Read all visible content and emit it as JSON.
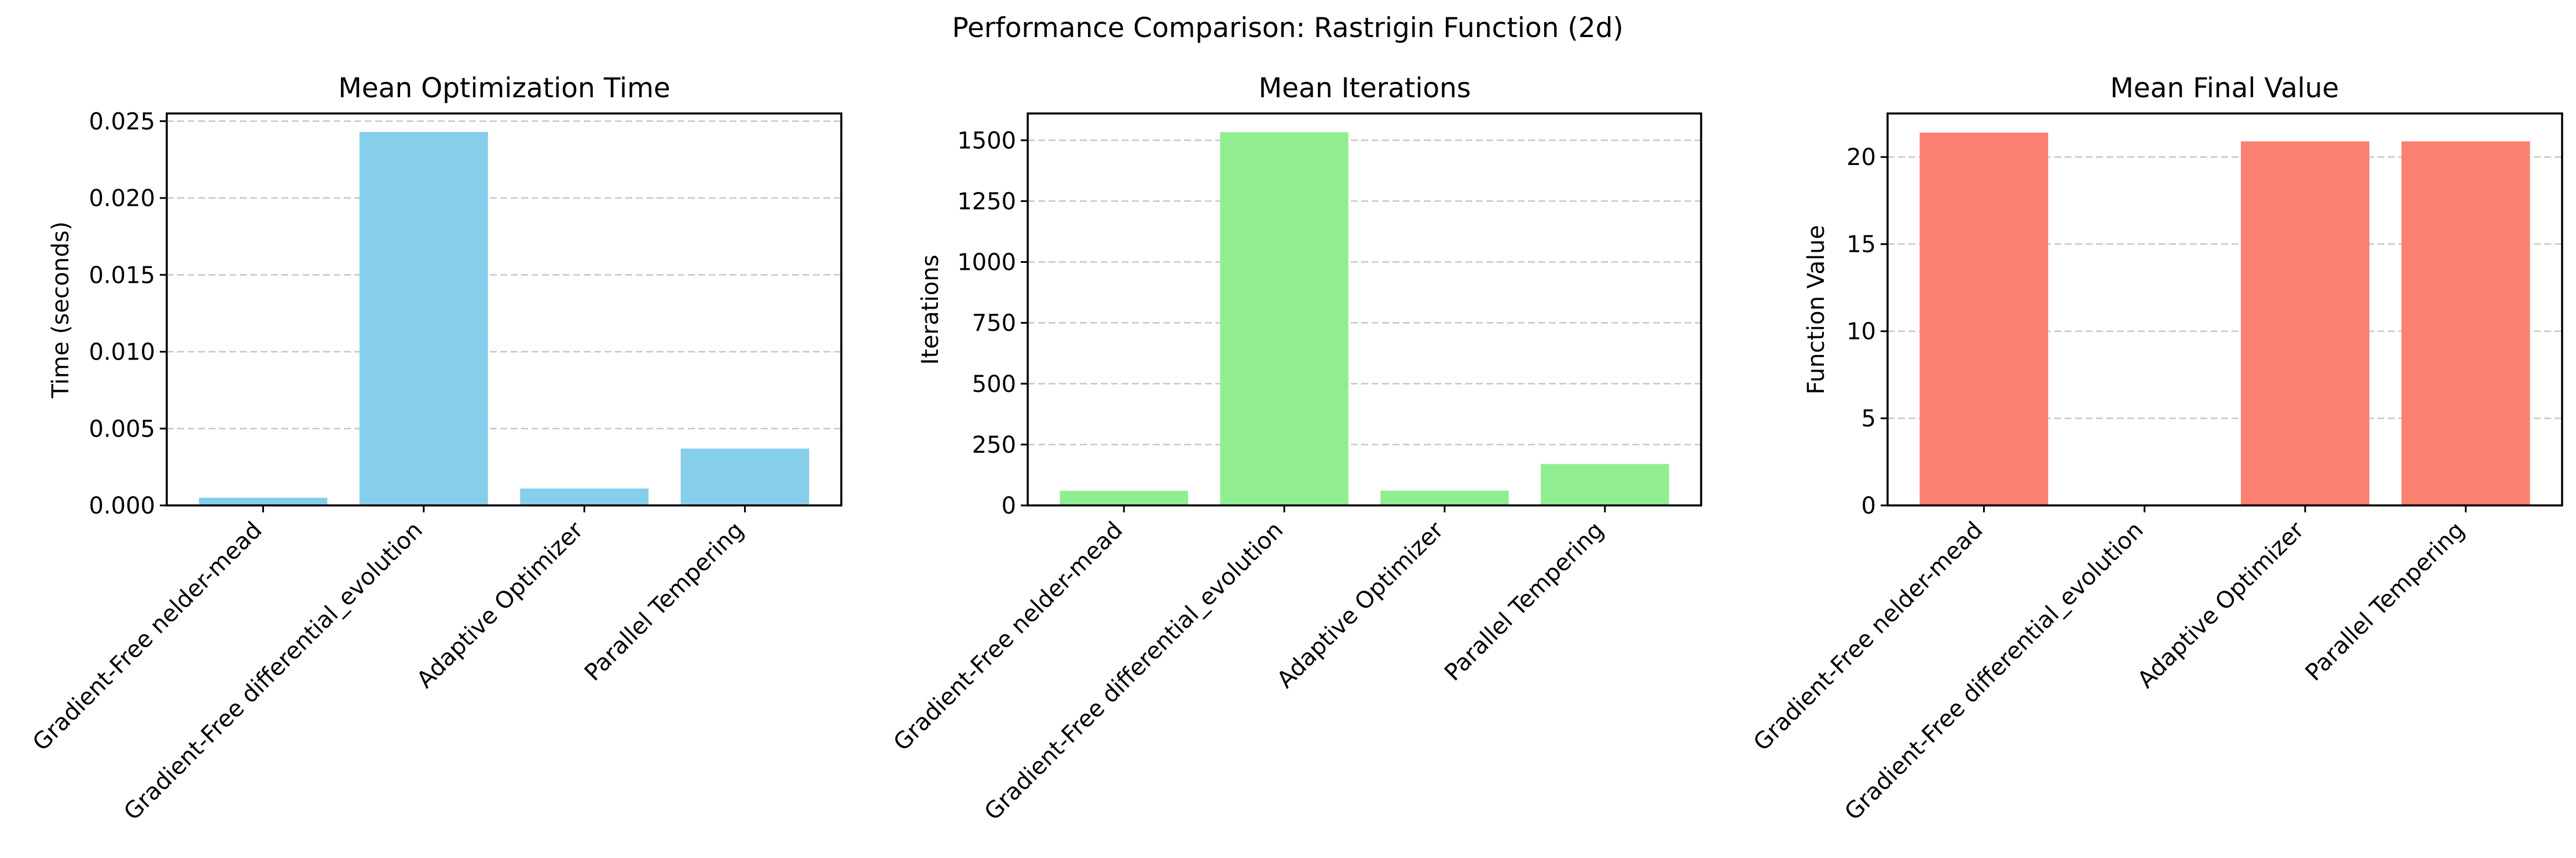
{
  "figure": {
    "suptitle": "Performance Comparison: Rastrigin Function (2d)"
  },
  "chart_data": [
    {
      "type": "bar",
      "title": "Mean Optimization Time",
      "xlabel": "",
      "ylabel": "Time (seconds)",
      "categories": [
        "Gradient-Free nelder-mead",
        "Gradient-Free differential_evolution",
        "Adaptive Optimizer",
        "Parallel Tempering"
      ],
      "values": [
        0.0005,
        0.0243,
        0.0011,
        0.0037
      ],
      "ylim": [
        0,
        0.0255
      ],
      "yticks": [
        0.0,
        0.005,
        0.01,
        0.015,
        0.02,
        0.025
      ],
      "ytick_labels": [
        "0.000",
        "0.005",
        "0.010",
        "0.015",
        "0.020",
        "0.025"
      ],
      "color": "#87CEEB",
      "grid": "y-dashed",
      "legend": "none"
    },
    {
      "type": "bar",
      "title": "Mean Iterations",
      "xlabel": "",
      "ylabel": "Iterations",
      "categories": [
        "Gradient-Free nelder-mead",
        "Gradient-Free differential_evolution",
        "Adaptive Optimizer",
        "Parallel Tempering"
      ],
      "values": [
        60,
        1533,
        61,
        170
      ],
      "ylim": [
        0,
        1610
      ],
      "yticks": [
        0,
        250,
        500,
        750,
        1000,
        1250,
        1500
      ],
      "ytick_labels": [
        "0",
        "250",
        "500",
        "750",
        "1000",
        "1250",
        "1500"
      ],
      "color": "#90EE90",
      "grid": "y-dashed",
      "legend": "none"
    },
    {
      "type": "bar",
      "title": "Mean Final Value",
      "xlabel": "",
      "ylabel": "Function Value",
      "categories": [
        "Gradient-Free nelder-mead",
        "Gradient-Free differential_evolution",
        "Adaptive Optimizer",
        "Parallel Tempering"
      ],
      "values": [
        21.4,
        0.0,
        20.9,
        20.9
      ],
      "ylim": [
        0,
        22.5
      ],
      "yticks": [
        0,
        5,
        10,
        15,
        20
      ],
      "ytick_labels": [
        "0",
        "5",
        "10",
        "15",
        "20"
      ],
      "color": "#FA8072",
      "grid": "y-dashed",
      "legend": "none"
    }
  ]
}
